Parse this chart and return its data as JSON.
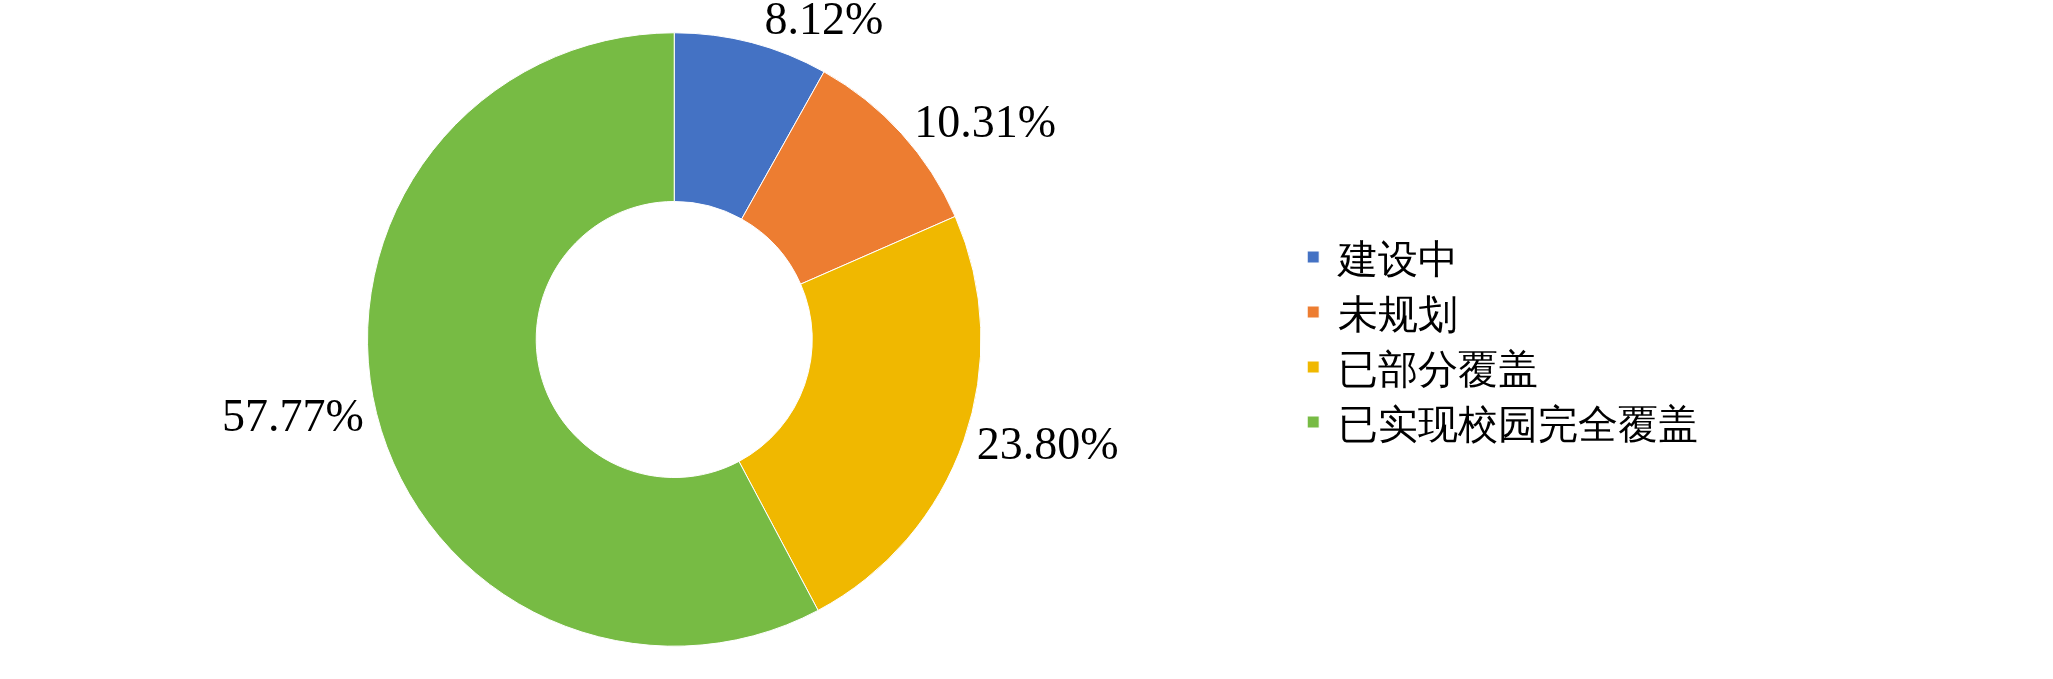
{
  "chart_data": {
    "type": "donut",
    "categories": [
      "建设中",
      "未规划",
      "已部分覆盖",
      "已实现校园完全覆盖"
    ],
    "values": [
      8.12,
      10.31,
      23.8,
      57.77
    ],
    "value_labels": [
      "8.12%",
      "10.31%",
      "23.80%",
      "57.77%"
    ],
    "colors": [
      "#4472c4",
      "#ed7d31",
      "#f0b800",
      "#77bb44"
    ],
    "legend": "right"
  }
}
